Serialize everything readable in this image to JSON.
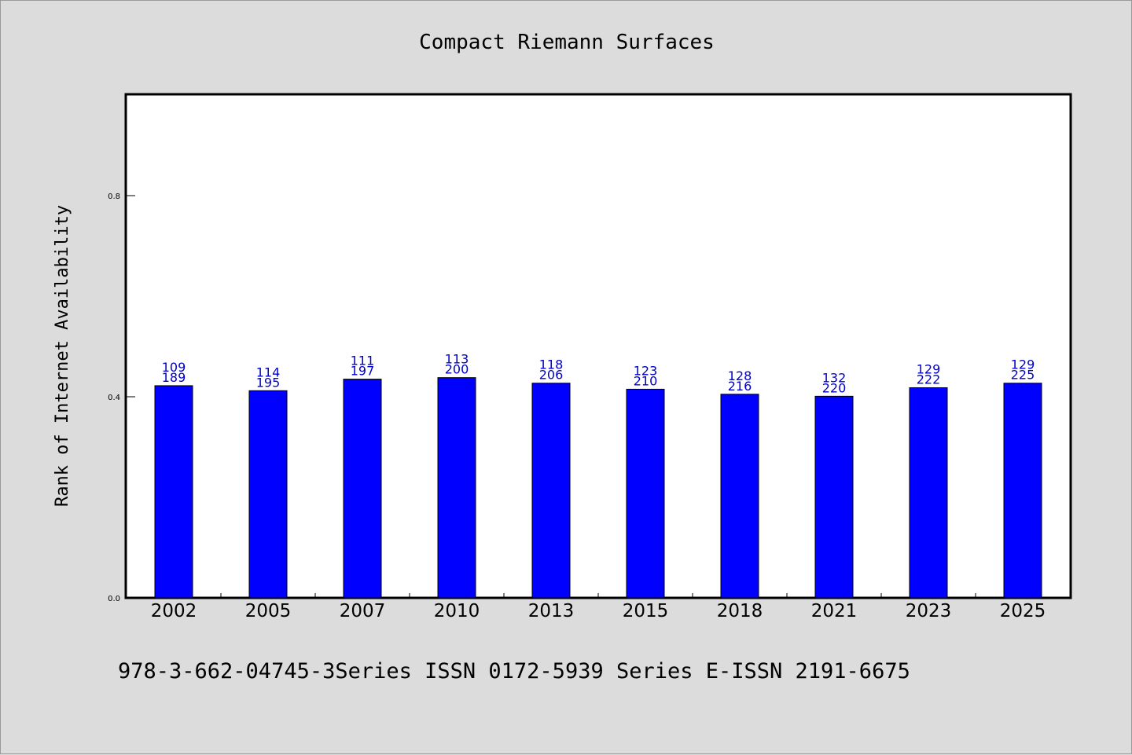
{
  "chart_data": {
    "type": "bar",
    "title": "Compact Riemann Surfaces",
    "xlabel": "",
    "ylabel": "Rank of Internet Availability",
    "categories": [
      "2002",
      "2005",
      "2007",
      "2010",
      "2013",
      "2015",
      "2018",
      "2021",
      "2023",
      "2025"
    ],
    "values": [
      0.422,
      0.412,
      0.435,
      0.438,
      0.427,
      0.415,
      0.405,
      0.401,
      0.418,
      0.427
    ],
    "labels_top": [
      "109",
      "114",
      "111",
      "113",
      "118",
      "123",
      "128",
      "132",
      "129",
      "129"
    ],
    "labels_bottom": [
      "189",
      "195",
      "197",
      "200",
      "206",
      "210",
      "216",
      "220",
      "222",
      "225"
    ],
    "ylim": [
      0,
      1.0
    ],
    "yticks": [
      0.0,
      0.4,
      0.8
    ],
    "ytick_labels": [
      "0.0",
      "0.4",
      "0.8"
    ],
    "grid": false,
    "legend": "none"
  },
  "footer": {
    "text": "978-3-662-04745-3Series ISSN 0172-5939 Series E-ISSN 2191-6675"
  },
  "colors": {
    "background": "#dcdcdc",
    "plot_background": "#ffffff",
    "bar_fill": "#0000ff",
    "bar_stroke": "#000000",
    "data_label": "#0000cc"
  }
}
